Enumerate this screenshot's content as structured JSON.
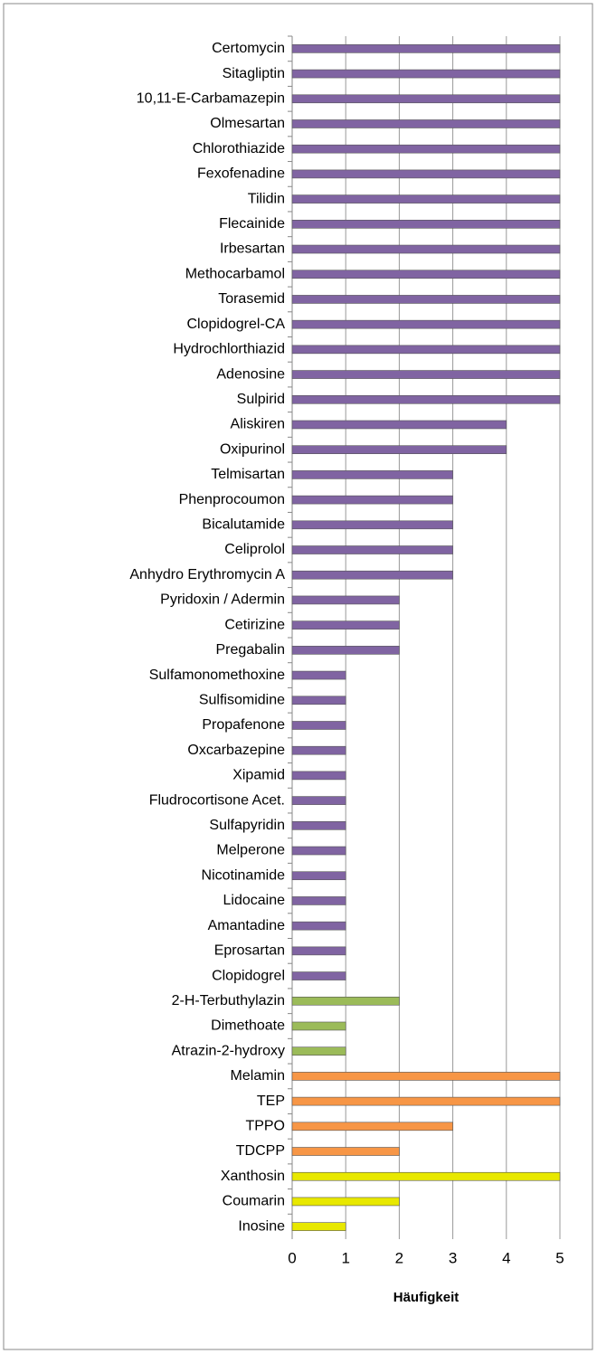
{
  "chart_data": {
    "type": "bar",
    "orientation": "horizontal",
    "x_axis_label": "Häufigkeit",
    "categories": [
      "Certomycin",
      "Sitagliptin",
      "10,11-E-Carbamazepin",
      "Olmesartan",
      "Chlorothiazide",
      "Fexofenadine",
      "Tilidin",
      "Flecainide",
      "Irbesartan",
      "Methocarbamol",
      "Torasemid",
      "Clopidogrel-CA",
      "Hydrochlorthiazid",
      "Adenosine",
      "Sulpirid",
      "Aliskiren",
      "Oxipurinol",
      "Telmisartan",
      "Phenprocoumon",
      "Bicalutamide",
      "Celiprolol",
      "Anhydro Erythromycin A",
      "Pyridoxin / Adermin",
      "Cetirizine",
      "Pregabalin",
      "Sulfamonomethoxine",
      "Sulfisomidine",
      "Propafenone",
      "Oxcarbazepine",
      "Xipamid",
      "Fludrocortisone Acet.",
      "Sulfapyridin",
      "Melperone",
      "Nicotinamide",
      "Lidocaine",
      "Amantadine",
      "Eprosartan",
      "Clopidogrel",
      "2-H-Terbuthylazin",
      "Dimethoate",
      "Atrazin-2-hydroxy",
      "Melamin",
      "TEP",
      "TPPO",
      "TDCPP",
      "Xanthosin",
      "Coumarin",
      "Inosine"
    ],
    "values": [
      5,
      5,
      5,
      5,
      5,
      5,
      5,
      5,
      5,
      5,
      5,
      5,
      5,
      5,
      5,
      4,
      4,
      3,
      3,
      3,
      3,
      3,
      2,
      2,
      2,
      1,
      1,
      1,
      1,
      1,
      1,
      1,
      1,
      1,
      1,
      1,
      1,
      1,
      2,
      1,
      1,
      5,
      5,
      3,
      2,
      5,
      2,
      1
    ],
    "colors": [
      "#8064a2",
      "#8064a2",
      "#8064a2",
      "#8064a2",
      "#8064a2",
      "#8064a2",
      "#8064a2",
      "#8064a2",
      "#8064a2",
      "#8064a2",
      "#8064a2",
      "#8064a2",
      "#8064a2",
      "#8064a2",
      "#8064a2",
      "#8064a2",
      "#8064a2",
      "#8064a2",
      "#8064a2",
      "#8064a2",
      "#8064a2",
      "#8064a2",
      "#8064a2",
      "#8064a2",
      "#8064a2",
      "#8064a2",
      "#8064a2",
      "#8064a2",
      "#8064a2",
      "#8064a2",
      "#8064a2",
      "#8064a2",
      "#8064a2",
      "#8064a2",
      "#8064a2",
      "#8064a2",
      "#8064a2",
      "#8064a2",
      "#9bbb59",
      "#9bbb59",
      "#9bbb59",
      "#f79646",
      "#f79646",
      "#f79646",
      "#f79646",
      "#e8e800",
      "#e8e800",
      "#e8e800"
    ],
    "xlim": [
      0,
      5
    ],
    "xticks": [
      0,
      1,
      2,
      3,
      4,
      5
    ],
    "grid": true
  }
}
